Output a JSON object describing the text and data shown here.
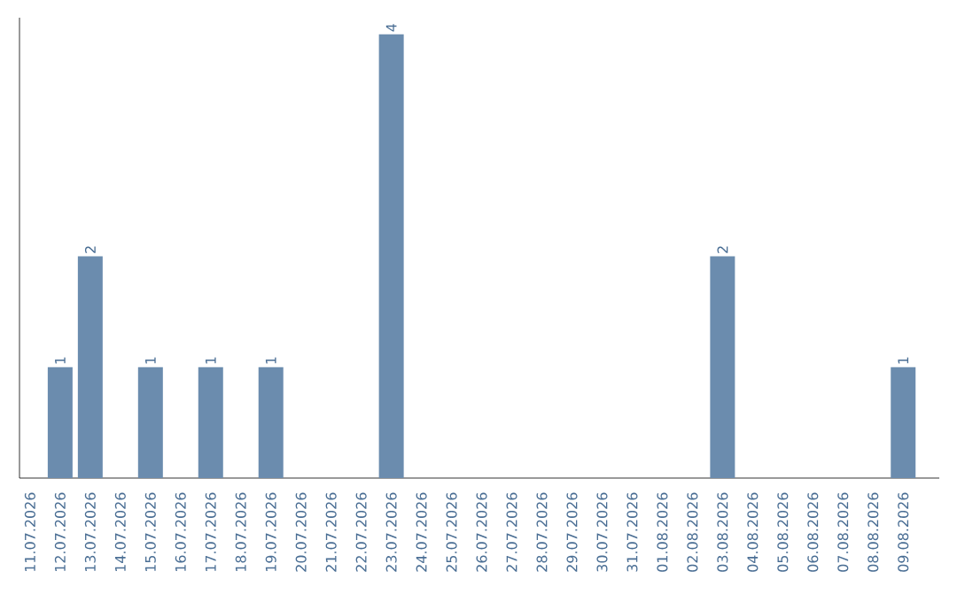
{
  "chart_data": {
    "type": "bar",
    "categories": [
      "11.07.2026",
      "12.07.2026",
      "13.07.2026",
      "14.07.2026",
      "15.07.2026",
      "16.07.2026",
      "17.07.2026",
      "18.07.2026",
      "19.07.2026",
      "20.07.2026",
      "21.07.2026",
      "22.07.2026",
      "23.07.2026",
      "24.07.2026",
      "25.07.2026",
      "26.07.2026",
      "27.07.2026",
      "28.07.2026",
      "29.07.2026",
      "30.07.2026",
      "31.07.2026",
      "01.08.2026",
      "02.08.2026",
      "03.08.2026",
      "04.08.2026",
      "05.08.2026",
      "06.08.2026",
      "07.08.2026",
      "08.08.2026",
      "09.08.2026"
    ],
    "values": [
      0,
      1,
      2,
      0,
      1,
      0,
      1,
      0,
      1,
      0,
      0,
      0,
      4,
      0,
      0,
      0,
      0,
      0,
      0,
      0,
      0,
      0,
      0,
      2,
      0,
      0,
      0,
      0,
      0,
      1
    ],
    "value_labels": [
      null,
      "1",
      "2",
      null,
      "1",
      null,
      "1",
      null,
      "1",
      null,
      null,
      null,
      "4",
      null,
      null,
      null,
      null,
      null,
      null,
      null,
      null,
      null,
      null,
      "2",
      null,
      null,
      null,
      null,
      null,
      "1"
    ],
    "color": "#6b8cae",
    "ylim": [
      0,
      4.15
    ],
    "tick_labels": "x"
  }
}
